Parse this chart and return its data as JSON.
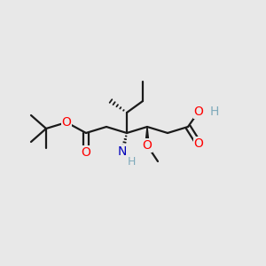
{
  "background_color": "#e8e8e8",
  "bond_color": "#1a1a1a",
  "oxygen_color": "#ff0000",
  "nitrogen_color": "#0000bb",
  "hydrogen_color": "#7faabb",
  "figsize": [
    3.0,
    3.0
  ],
  "dpi": 100,
  "xlim": [
    0,
    300
  ],
  "ylim": [
    0,
    300
  ]
}
